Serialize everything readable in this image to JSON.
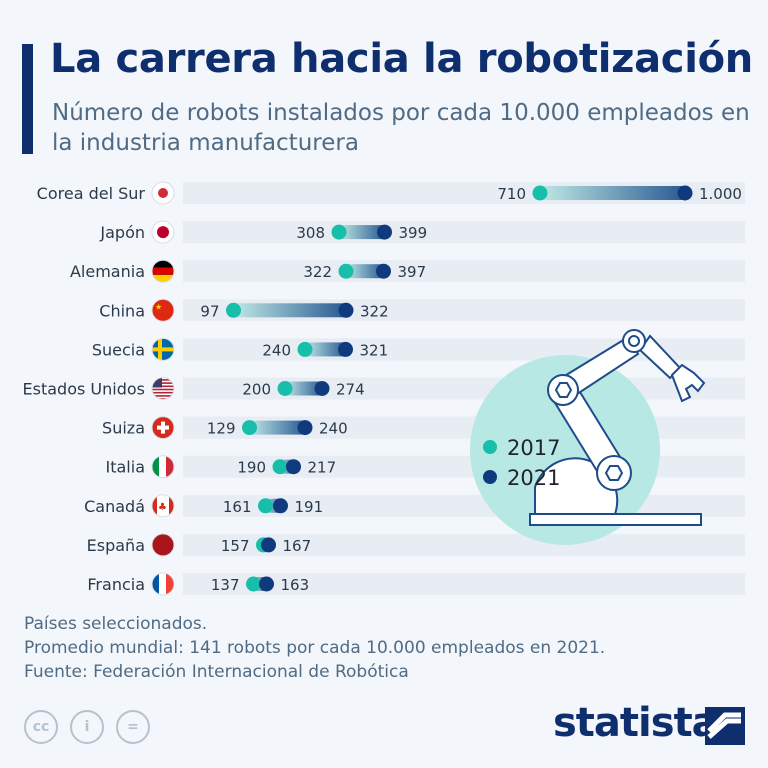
{
  "header": {
    "title": "La carrera hacia la robotización",
    "subtitle": "Número de robots instalados por cada 10.000 empleados en la industria manufacturera"
  },
  "chart_data": {
    "type": "dumbbell",
    "categories": [
      "Corea del Sur",
      "Japón",
      "Alemania",
      "China",
      "Suecia",
      "Estados Unidos",
      "Suiza",
      "Italia",
      "Canadá",
      "España",
      "Francia"
    ],
    "series": [
      {
        "name": "2017",
        "color": "#17bfaa",
        "values": [
          710,
          308,
          322,
          97,
          240,
          200,
          129,
          190,
          161,
          157,
          137
        ],
        "labels": [
          "710",
          "308",
          "322",
          "97",
          "240",
          "200",
          "129",
          "190",
          "161",
          "157",
          "137"
        ]
      },
      {
        "name": "2021",
        "color": "#0f3a7d",
        "values": [
          1000,
          399,
          397,
          322,
          321,
          274,
          240,
          217,
          191,
          167,
          163
        ],
        "labels": [
          "1.000",
          "399",
          "397",
          "322",
          "321",
          "274",
          "240",
          "217",
          "191",
          "167",
          "163"
        ]
      }
    ],
    "xlim": [
      0,
      1000
    ],
    "legend": "right, inside robot illustration circle"
  },
  "footer": {
    "notes": [
      "Países seleccionados.",
      "Promedio mundial: 141 robots por cada 10.000 empleados en 2021.",
      "Fuente: Federación Internacional de Robótica"
    ],
    "cc_icons": [
      "cc",
      "i",
      "="
    ],
    "brand": "statista"
  }
}
